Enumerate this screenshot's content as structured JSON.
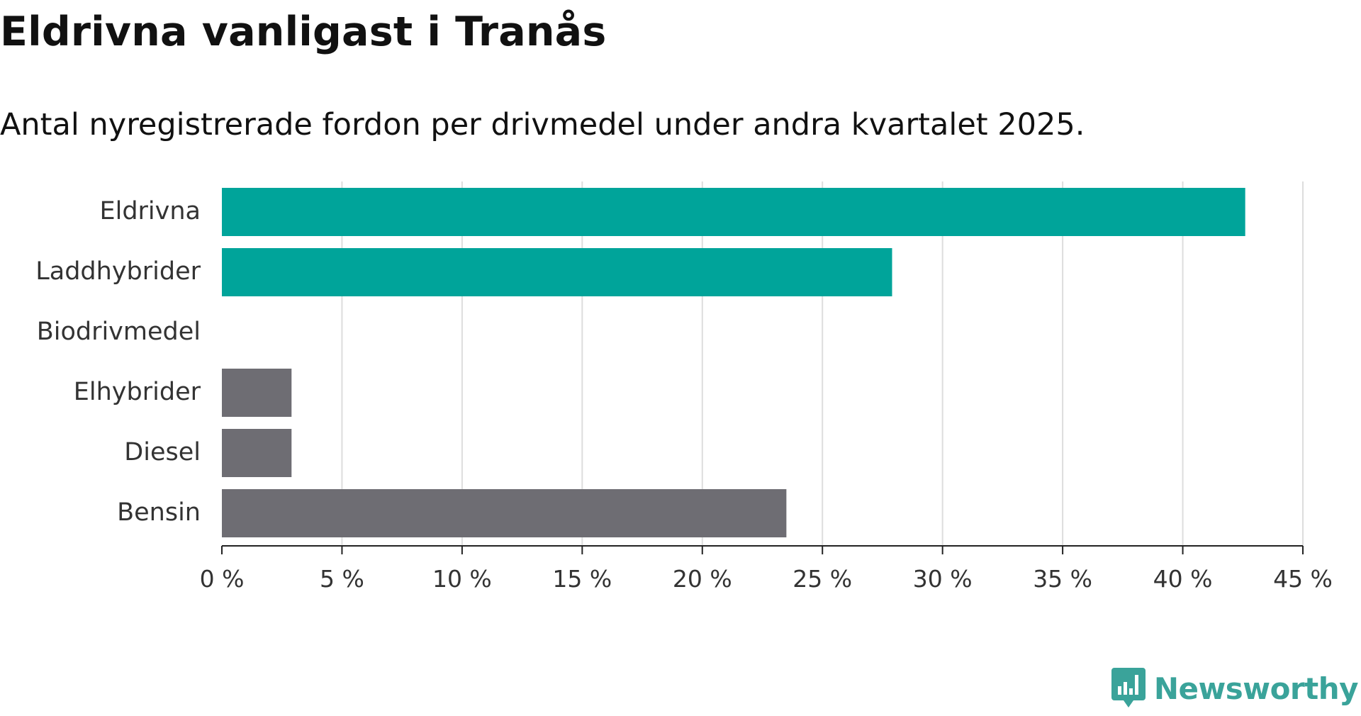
{
  "title": "Eldrivna vanligast i Tranås",
  "subtitle": "Antal nyregistrerade fordon per drivmedel under andra kvartalet 2025.",
  "brand": {
    "name": "Newsworthy",
    "icon": "newsworthy-logo-icon",
    "color": "#3aa39a"
  },
  "colors": {
    "highlight": "#00a49a",
    "other": "#6e6d73",
    "grid": "#dddddd",
    "axis": "#222222"
  },
  "chart_data": {
    "type": "bar",
    "orientation": "horizontal",
    "categories": [
      "Eldrivna",
      "Laddhybrider",
      "Biodrivmedel",
      "Elhybrider",
      "Diesel",
      "Bensin"
    ],
    "values": [
      42.6,
      27.9,
      0,
      2.9,
      2.9,
      23.5
    ],
    "bar_colors": [
      "highlight",
      "highlight",
      "highlight",
      "other",
      "other",
      "other"
    ],
    "xlim": [
      0,
      45
    ],
    "xticks": [
      0,
      5,
      10,
      15,
      20,
      25,
      30,
      35,
      40,
      45
    ],
    "tick_labels": [
      "0 %",
      "5 %",
      "10 %",
      "15 %",
      "20 %",
      "25 %",
      "30 %",
      "35 %",
      "40 %",
      "45 %"
    ],
    "unit": "%",
    "grid": true
  }
}
